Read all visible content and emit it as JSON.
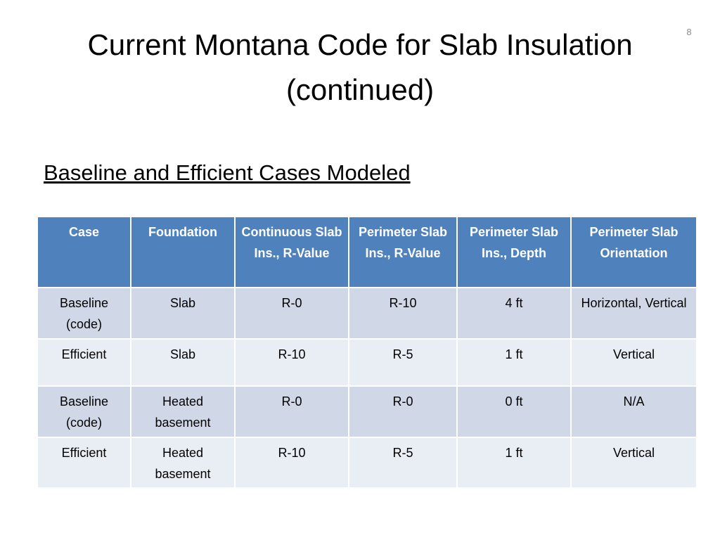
{
  "slide": {
    "title": "Current Montana Code for Slab Insulation (continued)",
    "slide_number": "8",
    "subtitle": "Baseline and Efficient Cases Modeled"
  },
  "table": {
    "header": [
      "Case",
      "Foundation",
      "Continuous Slab Ins., R-Value",
      "Perimeter Slab Ins., R-Value",
      "Perimeter Slab Ins., Depth",
      "Perimeter Slab Orientation"
    ],
    "rows": [
      [
        "Baseline (code)",
        "Slab",
        "R-0",
        "R-10",
        "4 ft",
        "Horizontal, Vertical"
      ],
      [
        "Efficient",
        "Slab",
        "R-10",
        "R-5",
        "1 ft",
        "Vertical"
      ],
      [
        "Baseline (code)",
        "Heated basement",
        "R-0",
        "R-0",
        "0 ft",
        "N/A"
      ],
      [
        "Efficient",
        "Heated basement",
        "R-10",
        "R-5",
        "1 ft",
        "Vertical"
      ]
    ]
  }
}
